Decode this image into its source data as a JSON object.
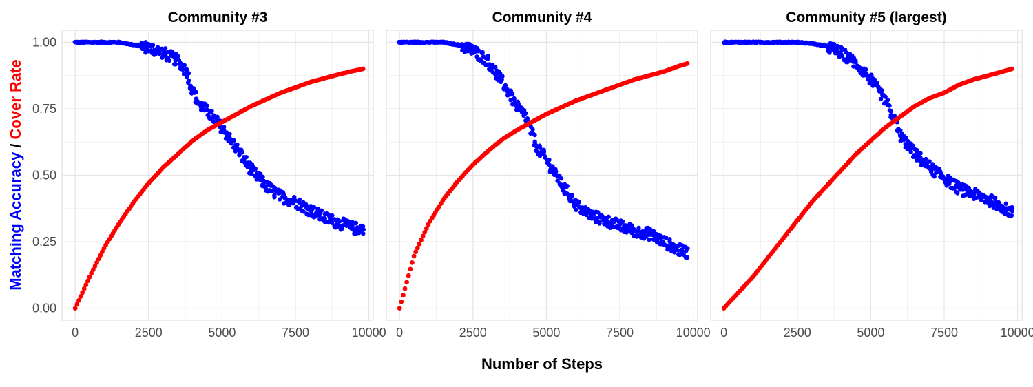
{
  "colors": {
    "accuracy": "#0000ff",
    "cover": "#ff0000",
    "grid_major": "#e5e5e5",
    "grid_minor": "#f2f2f2",
    "panel_border": "#d9d9d9",
    "tick_text": "#4d4d4d"
  },
  "chart_data": {
    "type": "scatter",
    "xlabel": "Number of Steps",
    "ylabel_parts": [
      {
        "text": "Matching Accuracy",
        "series": "accuracy"
      },
      {
        "text": " / ",
        "series": "none"
      },
      {
        "text": "Cover Rate",
        "series": "cover"
      }
    ],
    "xlim": [
      -450,
      10150
    ],
    "ylim": [
      -0.045,
      1.045
    ],
    "x_ticks": [
      0,
      2500,
      5000,
      7500,
      10000
    ],
    "x_tick_labels": [
      "0",
      "2500",
      "5000",
      "7500",
      "10000"
    ],
    "y_ticks": [
      0.0,
      0.25,
      0.5,
      0.75,
      1.0
    ],
    "y_tick_labels": [
      "0.00",
      "0.25",
      "0.50",
      "0.75",
      "1.00"
    ],
    "grid": true,
    "panels": [
      {
        "title": "Community #3",
        "x_max": 9800,
        "series": [
          {
            "key": "accuracy",
            "x": [
              0,
              1000,
              1500,
              2000,
              2500,
              3000,
              3500,
              3800,
              4000,
              4200,
              4500,
              5000,
              5500,
              6000,
              6500,
              7000,
              7500,
              8000,
              8500,
              9000,
              9500,
              9800
            ],
            "y": [
              1.0,
              1.0,
              1.0,
              0.99,
              0.98,
              0.96,
              0.93,
              0.89,
              0.82,
              0.77,
              0.74,
              0.68,
              0.6,
              0.52,
              0.46,
              0.42,
              0.4,
              0.37,
              0.34,
              0.32,
              0.3,
              0.3
            ]
          },
          {
            "key": "cover",
            "x": [
              0,
              250,
              500,
              1000,
              1500,
              2000,
              2500,
              3000,
              3500,
              4000,
              4500,
              5000,
              5500,
              6000,
              6500,
              7000,
              7500,
              8000,
              8500,
              9000,
              9500,
              9800
            ],
            "y": [
              0.0,
              0.06,
              0.12,
              0.23,
              0.32,
              0.4,
              0.47,
              0.53,
              0.58,
              0.63,
              0.67,
              0.7,
              0.73,
              0.76,
              0.785,
              0.81,
              0.83,
              0.85,
              0.865,
              0.88,
              0.893,
              0.9
            ]
          }
        ]
      },
      {
        "title": "Community #4",
        "x_max": 9800,
        "series": [
          {
            "key": "accuracy",
            "x": [
              0,
              1000,
              1500,
              2000,
              2500,
              3000,
              3500,
              4000,
              4300,
              4500,
              4700,
              5000,
              5500,
              6000,
              6500,
              7000,
              7500,
              8000,
              8500,
              9000,
              9500,
              9800
            ],
            "y": [
              1.0,
              1.0,
              1.0,
              0.99,
              0.97,
              0.93,
              0.85,
              0.76,
              0.72,
              0.66,
              0.6,
              0.56,
              0.47,
              0.39,
              0.35,
              0.33,
              0.31,
              0.29,
              0.28,
              0.25,
              0.22,
              0.21
            ]
          },
          {
            "key": "cover",
            "x": [
              0,
              250,
              500,
              1000,
              1500,
              2000,
              2500,
              3000,
              3500,
              4000,
              4500,
              5000,
              5500,
              6000,
              6500,
              7000,
              7500,
              8000,
              8500,
              9000,
              9500,
              9800
            ],
            "y": [
              0.0,
              0.1,
              0.2,
              0.32,
              0.41,
              0.48,
              0.54,
              0.59,
              0.635,
              0.67,
              0.7,
              0.73,
              0.755,
              0.78,
              0.8,
              0.82,
              0.84,
              0.86,
              0.875,
              0.89,
              0.91,
              0.92
            ]
          }
        ]
      },
      {
        "title": "Community #5 (largest)",
        "x_max": 9800,
        "series": [
          {
            "key": "accuracy",
            "x": [
              0,
              1000,
              2000,
              2500,
              3000,
              3500,
              4000,
              4500,
              5000,
              5500,
              5800,
              6000,
              6500,
              7000,
              7500,
              8000,
              8500,
              9000,
              9500,
              9800
            ],
            "y": [
              1.0,
              1.0,
              1.0,
              1.0,
              0.995,
              0.985,
              0.96,
              0.92,
              0.86,
              0.78,
              0.71,
              0.65,
              0.58,
              0.53,
              0.49,
              0.45,
              0.43,
              0.41,
              0.38,
              0.36
            ]
          },
          {
            "key": "cover",
            "x": [
              0,
              500,
              1000,
              1500,
              2000,
              2500,
              3000,
              3500,
              4000,
              4500,
              5000,
              5500,
              6000,
              6500,
              7000,
              7500,
              8000,
              8500,
              9000,
              9500,
              9800
            ],
            "y": [
              0.0,
              0.06,
              0.12,
              0.19,
              0.26,
              0.33,
              0.4,
              0.46,
              0.52,
              0.58,
              0.63,
              0.68,
              0.72,
              0.76,
              0.79,
              0.81,
              0.84,
              0.86,
              0.875,
              0.89,
              0.9
            ]
          }
        ]
      }
    ]
  }
}
